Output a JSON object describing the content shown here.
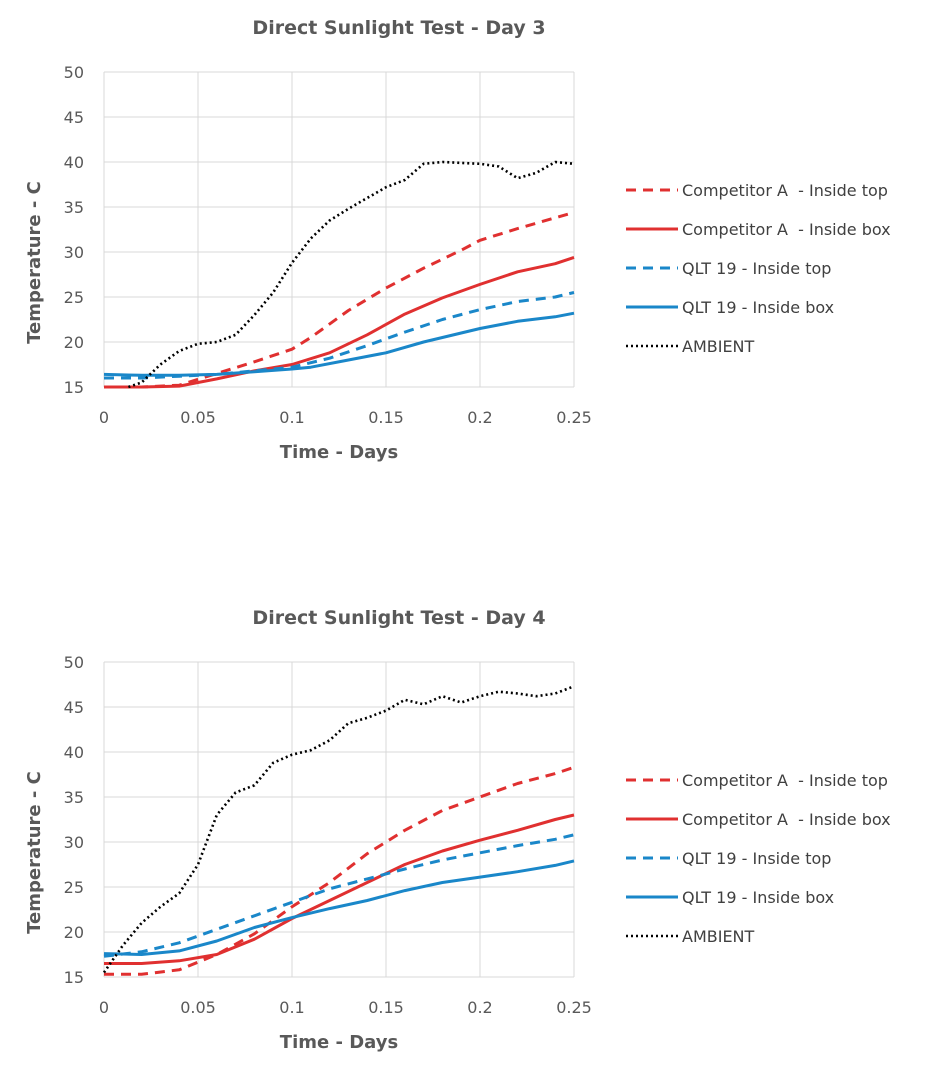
{
  "chart_data": [
    {
      "type": "line",
      "title": "Direct Sunlight Test - Day 3",
      "xlabel": "Time - Days",
      "ylabel": "Temperature - C",
      "xlim": [
        0,
        0.25
      ],
      "ylim": [
        15,
        50
      ],
      "xticks": [
        "0",
        "0.05",
        "0.1",
        "0.15",
        "0.2",
        "0.25"
      ],
      "yticks": [
        "15",
        "20",
        "25",
        "30",
        "35",
        "40",
        "45",
        "50"
      ],
      "grid": true,
      "legend_position": "right",
      "series": [
        {
          "name": "Competitor A  - Inside top",
          "color": "#e03030",
          "style": "dashed",
          "x": [
            0,
            0.02,
            0.04,
            0.06,
            0.08,
            0.1,
            0.11,
            0.13,
            0.15,
            0.17,
            0.19,
            0.2,
            0.22,
            0.24,
            0.25
          ],
          "y": [
            15,
            15,
            15.2,
            16.5,
            17.8,
            19.2,
            20.5,
            23.5,
            26,
            28.2,
            30.2,
            31.3,
            32.6,
            33.8,
            34.4
          ]
        },
        {
          "name": "Competitor A  - Inside box",
          "color": "#e03030",
          "style": "solid",
          "x": [
            0,
            0.02,
            0.04,
            0.06,
            0.08,
            0.1,
            0.12,
            0.14,
            0.16,
            0.18,
            0.2,
            0.22,
            0.24,
            0.25
          ],
          "y": [
            15,
            15,
            15.1,
            15.9,
            16.8,
            17.5,
            18.8,
            20.8,
            23.1,
            24.9,
            26.4,
            27.8,
            28.7,
            29.4
          ]
        },
        {
          "name": "QLT 19 - Inside top",
          "color": "#1a87c9",
          "style": "dashed",
          "x": [
            0,
            0.02,
            0.04,
            0.06,
            0.08,
            0.1,
            0.12,
            0.14,
            0.16,
            0.18,
            0.2,
            0.22,
            0.24,
            0.25
          ],
          "y": [
            16,
            16,
            16.2,
            16.4,
            16.8,
            17.2,
            18.2,
            19.6,
            21.1,
            22.5,
            23.6,
            24.5,
            25,
            25.5
          ]
        },
        {
          "name": "QLT 19 - Inside box",
          "color": "#1a87c9",
          "style": "solid",
          "x": [
            0,
            0.02,
            0.04,
            0.06,
            0.08,
            0.1,
            0.11,
            0.13,
            0.15,
            0.17,
            0.19,
            0.2,
            0.22,
            0.24,
            0.25
          ],
          "y": [
            16.4,
            16.3,
            16.3,
            16.4,
            16.7,
            17,
            17.2,
            18,
            18.8,
            20,
            21,
            21.5,
            22.3,
            22.8,
            23.2
          ]
        },
        {
          "name": "AMBIENT",
          "color": "#000000",
          "style": "dotted",
          "x": [
            0.013,
            0.02,
            0.03,
            0.04,
            0.05,
            0.06,
            0.07,
            0.08,
            0.09,
            0.1,
            0.11,
            0.12,
            0.13,
            0.14,
            0.15,
            0.16,
            0.17,
            0.18,
            0.19,
            0.2,
            0.21,
            0.22,
            0.23,
            0.24,
            0.25
          ],
          "y": [
            15,
            15.5,
            17.5,
            19,
            19.8,
            20,
            20.8,
            23,
            25.5,
            28.8,
            31.5,
            33.5,
            34.8,
            36,
            37.2,
            38,
            39.8,
            40,
            39.9,
            39.8,
            39.5,
            38.2,
            38.8,
            40,
            39.8
          ]
        }
      ]
    },
    {
      "type": "line",
      "title": "Direct Sunlight Test - Day 4",
      "xlabel": "Time - Days",
      "ylabel": "Temperature - C",
      "xlim": [
        0,
        0.25
      ],
      "ylim": [
        15,
        50
      ],
      "xticks": [
        "0",
        "0.05",
        "0.1",
        "0.15",
        "0.2",
        "0.25"
      ],
      "yticks": [
        "15",
        "20",
        "25",
        "30",
        "35",
        "40",
        "45",
        "50"
      ],
      "grid": true,
      "legend_position": "right",
      "series": [
        {
          "name": "Competitor A  - Inside top",
          "color": "#e03030",
          "style": "dashed",
          "x": [
            0,
            0.02,
            0.04,
            0.06,
            0.08,
            0.1,
            0.12,
            0.14,
            0.16,
            0.18,
            0.2,
            0.22,
            0.24,
            0.25
          ],
          "y": [
            15.3,
            15.3,
            15.8,
            17.5,
            19.8,
            22.8,
            25.5,
            28.7,
            31.3,
            33.5,
            35,
            36.5,
            37.6,
            38.3
          ]
        },
        {
          "name": "Competitor A  - Inside box",
          "color": "#e03030",
          "style": "solid",
          "x": [
            0,
            0.02,
            0.04,
            0.06,
            0.08,
            0.1,
            0.12,
            0.14,
            0.16,
            0.18,
            0.2,
            0.22,
            0.24,
            0.25
          ],
          "y": [
            16.5,
            16.5,
            16.8,
            17.5,
            19.2,
            21.5,
            23.5,
            25.5,
            27.5,
            29,
            30.2,
            31.3,
            32.5,
            33
          ]
        },
        {
          "name": "QLT 19 - Inside top",
          "color": "#1a87c9",
          "style": "dashed",
          "x": [
            0,
            0.02,
            0.04,
            0.06,
            0.08,
            0.1,
            0.12,
            0.14,
            0.16,
            0.18,
            0.2,
            0.22,
            0.24,
            0.25
          ],
          "y": [
            17.3,
            17.8,
            18.8,
            20.3,
            21.8,
            23.3,
            24.8,
            25.9,
            27,
            28,
            28.8,
            29.6,
            30.3,
            30.8
          ]
        },
        {
          "name": "QLT 19 - Inside box",
          "color": "#1a87c9",
          "style": "solid",
          "x": [
            0,
            0.02,
            0.04,
            0.06,
            0.08,
            0.1,
            0.12,
            0.14,
            0.16,
            0.18,
            0.2,
            0.22,
            0.24,
            0.25
          ],
          "y": [
            17.6,
            17.5,
            17.9,
            19,
            20.5,
            21.6,
            22.6,
            23.5,
            24.6,
            25.5,
            26.1,
            26.7,
            27.4,
            27.9
          ]
        },
        {
          "name": "AMBIENT",
          "color": "#000000",
          "style": "dotted",
          "x": [
            0,
            0.01,
            0.02,
            0.03,
            0.04,
            0.05,
            0.06,
            0.07,
            0.08,
            0.09,
            0.1,
            0.11,
            0.12,
            0.13,
            0.14,
            0.15,
            0.16,
            0.17,
            0.18,
            0.19,
            0.2,
            0.21,
            0.22,
            0.23,
            0.24,
            0.25
          ],
          "y": [
            15.5,
            18.5,
            21,
            22.8,
            24.3,
            27.5,
            33,
            35.5,
            36.3,
            38.8,
            39.7,
            40.2,
            41.3,
            43.2,
            43.8,
            44.6,
            45.8,
            45.3,
            46.2,
            45.5,
            46.2,
            46.7,
            46.5,
            46.2,
            46.5,
            47.3
          ]
        }
      ]
    }
  ]
}
